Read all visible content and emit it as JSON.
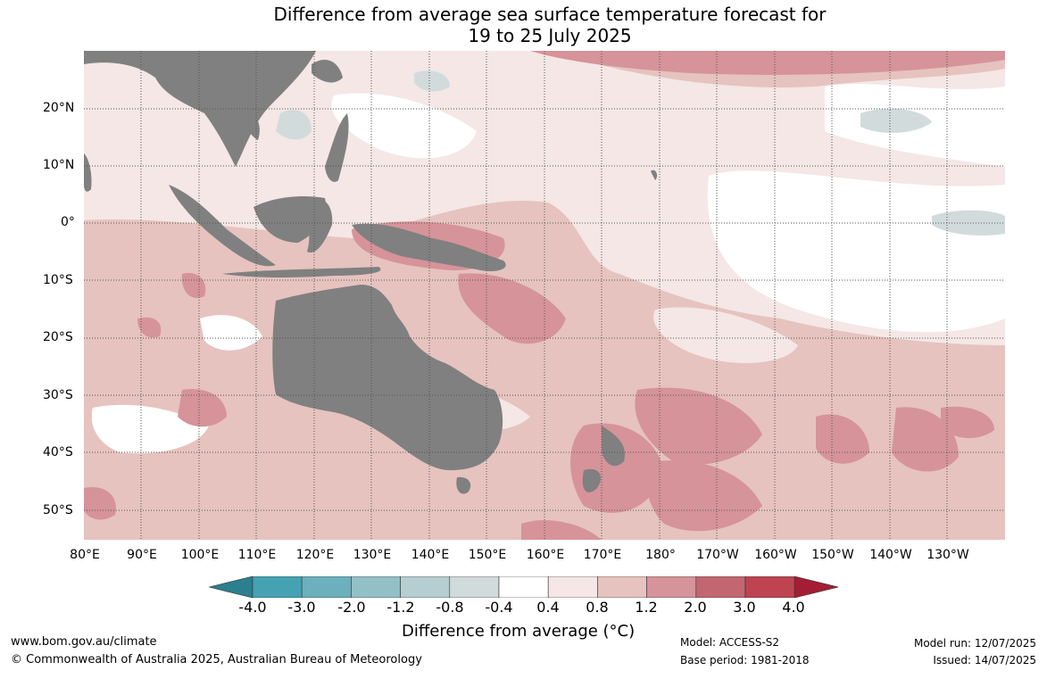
{
  "title_line1": "Difference from average sea surface temperature forecast for",
  "title_line2": "19 to 25 July 2025",
  "lat_labels": [
    "20°N",
    "10°N",
    "0°",
    "10°S",
    "20°S",
    "30°S",
    "40°S",
    "50°S"
  ],
  "lon_labels": [
    "80°E",
    "90°E",
    "100°E",
    "110°E",
    "120°E",
    "130°E",
    "140°E",
    "150°E",
    "160°E",
    "170°E",
    "180°",
    "170°W",
    "160°W",
    "150°W",
    "140°W",
    "130°W"
  ],
  "colorbar": {
    "ticks": [
      "-4.0",
      "-3.0",
      "-2.0",
      "-1.2",
      "-0.8",
      "-0.4",
      "0.4",
      "0.8",
      "1.2",
      "2.0",
      "3.0",
      "4.0"
    ],
    "colors": [
      "#2b7f8e",
      "#44a2b3",
      "#6cb0bd",
      "#93bfc6",
      "#b6ced1",
      "#d2dbdc",
      "#ffffff",
      "#f4e7e5",
      "#e6c3bf",
      "#d6939a",
      "#c26772",
      "#bd4450",
      "#a51d34"
    ],
    "title": "Difference from average (°C)"
  },
  "footer": {
    "website": "www.bom.gov.au/climate",
    "copyright": "© Commonwealth of Australia 2025, Australian Bureau of Meteorology",
    "model": "Model: ACCESS-S2",
    "base_period": "Base period: 1981-2018",
    "model_run": "Model run: 12/07/2025",
    "issued": "Issued: 14/07/2025"
  },
  "colors": {
    "land": "#808080",
    "grid": "#555555"
  }
}
